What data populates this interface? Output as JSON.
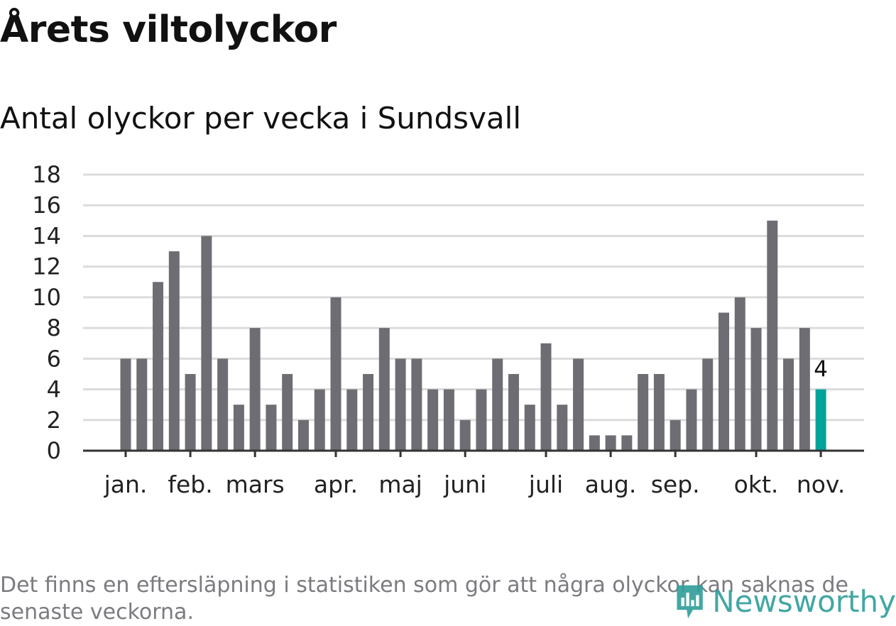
{
  "header": {
    "title": "Årets viltolyckor",
    "subtitle": "Antal olyckor per vecka i Sundsvall"
  },
  "chart_data": {
    "type": "bar",
    "title": "Antal olyckor per vecka i Sundsvall",
    "xlabel": "",
    "ylabel": "",
    "ylim": [
      0,
      18
    ],
    "y_ticks": [
      0,
      2,
      4,
      6,
      8,
      10,
      12,
      14,
      16,
      18
    ],
    "grid": true,
    "weeks": [
      1,
      2,
      3,
      4,
      5,
      6,
      7,
      8,
      9,
      10,
      11,
      12,
      13,
      14,
      15,
      16,
      17,
      18,
      19,
      20,
      21,
      22,
      23,
      24,
      25,
      26,
      27,
      28,
      29,
      30,
      31,
      32,
      33,
      34,
      35,
      36,
      37,
      38,
      39,
      40,
      41,
      42,
      43,
      44
    ],
    "values": [
      6,
      6,
      11,
      13,
      5,
      14,
      6,
      3,
      8,
      3,
      5,
      2,
      4,
      10,
      4,
      5,
      8,
      6,
      6,
      4,
      4,
      2,
      4,
      6,
      5,
      3,
      7,
      3,
      6,
      1,
      1,
      1,
      5,
      5,
      2,
      4,
      6,
      9,
      10,
      8,
      15,
      6,
      8,
      4
    ],
    "month_ticks": [
      {
        "label": "jan.",
        "week": 1
      },
      {
        "label": "feb.",
        "week": 5
      },
      {
        "label": "mars",
        "week": 9
      },
      {
        "label": "apr.",
        "week": 14
      },
      {
        "label": "maj",
        "week": 18
      },
      {
        "label": "juni",
        "week": 22
      },
      {
        "label": "juli",
        "week": 27
      },
      {
        "label": "aug.",
        "week": 31
      },
      {
        "label": "sep.",
        "week": 35
      },
      {
        "label": "okt.",
        "week": 40
      },
      {
        "label": "nov.",
        "week": 44
      }
    ],
    "highlight_last": true,
    "last_value_label": "4",
    "colors": {
      "bar": "#6e6d73",
      "highlight": "#00a39a",
      "grid": "#dcdcdc",
      "axis": "#333333"
    }
  },
  "footer": {
    "note": "Det finns en eftersläpning i statistiken som gör att några olyckor kan saknas de senaste veckorna.",
    "brand": "Newsworthy",
    "brand_icon": "newsworthy-logo-icon"
  }
}
